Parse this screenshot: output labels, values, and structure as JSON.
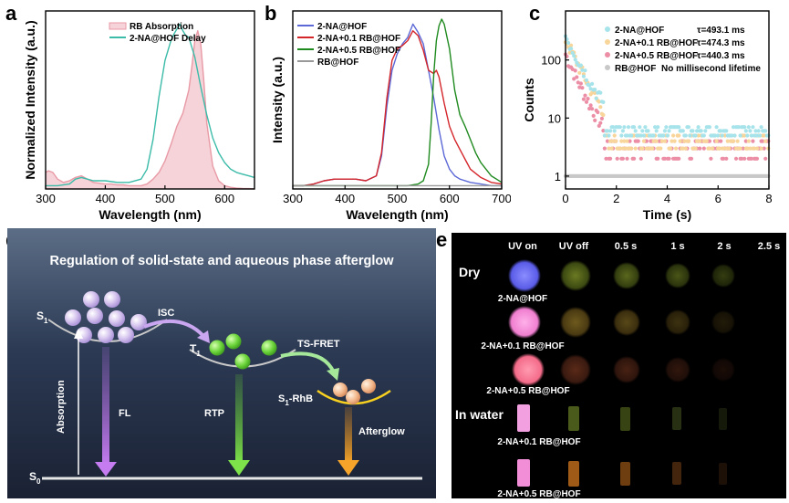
{
  "panel_labels": {
    "a": "a",
    "b": "b",
    "c": "c",
    "d": "d",
    "e": "e"
  },
  "chart_data": [
    {
      "type": "area",
      "panel": "a",
      "xlabel": "Wavelength (nm)",
      "ylabel": "Normalized Intensity (a.u.)",
      "xlim": [
        300,
        650
      ],
      "xticks": [
        300,
        400,
        500,
        600
      ],
      "ylim": [
        0,
        1.08
      ],
      "series": [
        {
          "name": "RB Absorption",
          "color": "#e89aa6",
          "fill": "#f6d3d8",
          "x": [
            300,
            305,
            312,
            320,
            330,
            340,
            350,
            360,
            370,
            380,
            390,
            400,
            410,
            420,
            430,
            440,
            450,
            460,
            470,
            480,
            490,
            500,
            510,
            520,
            530,
            540,
            545,
            550,
            555,
            560,
            565,
            570,
            580,
            590,
            600,
            610,
            620,
            630,
            640,
            650
          ],
          "y": [
            0.1,
            0.11,
            0.1,
            0.06,
            0.04,
            0.05,
            0.07,
            0.08,
            0.06,
            0.04,
            0.035,
            0.03,
            0.03,
            0.025,
            0.025,
            0.02,
            0.02,
            0.02,
            0.03,
            0.06,
            0.1,
            0.17,
            0.27,
            0.38,
            0.46,
            0.6,
            0.74,
            0.9,
            0.96,
            0.88,
            0.66,
            0.4,
            0.14,
            0.05,
            0.02,
            0.01,
            0.005,
            0.003,
            0.002,
            0.0
          ]
        },
        {
          "name": "2-NA@HOF Delay",
          "color": "#3bbba8",
          "x": [
            300,
            320,
            340,
            350,
            360,
            370,
            380,
            390,
            400,
            420,
            440,
            460,
            470,
            480,
            490,
            500,
            510,
            515,
            520,
            525,
            530,
            535,
            540,
            550,
            560,
            570,
            580,
            590,
            600,
            610,
            620,
            630,
            640,
            650
          ],
          "y": [
            0.02,
            0.02,
            0.03,
            0.06,
            0.07,
            0.06,
            0.05,
            0.05,
            0.05,
            0.04,
            0.04,
            0.06,
            0.12,
            0.3,
            0.56,
            0.78,
            0.9,
            0.94,
            0.97,
            1.0,
            0.96,
            0.93,
            0.92,
            0.8,
            0.62,
            0.45,
            0.31,
            0.22,
            0.16,
            0.12,
            0.1,
            0.09,
            0.08,
            0.07
          ]
        }
      ]
    },
    {
      "type": "line",
      "panel": "b",
      "xlabel": "Wavelength (nm)",
      "ylabel": "Intensity (a.u.)",
      "xlim": [
        300,
        700
      ],
      "xticks": [
        300,
        400,
        500,
        600,
        700
      ],
      "ylim": [
        0,
        1.08
      ],
      "series": [
        {
          "name": "2-NA@HOF",
          "color": "#5b68d6",
          "x": [
            300,
            320,
            340,
            360,
            380,
            400,
            420,
            440,
            460,
            470,
            480,
            490,
            500,
            510,
            520,
            530,
            540,
            550,
            560,
            570,
            580,
            590,
            600,
            610,
            620,
            640,
            660,
            680,
            700
          ],
          "y": [
            0.02,
            0.02,
            0.03,
            0.05,
            0.06,
            0.06,
            0.06,
            0.05,
            0.08,
            0.2,
            0.5,
            0.72,
            0.82,
            0.88,
            0.92,
            1.0,
            0.95,
            0.88,
            0.72,
            0.55,
            0.36,
            0.2,
            0.12,
            0.08,
            0.06,
            0.04,
            0.03,
            0.02,
            0.02
          ]
        },
        {
          "name": "2-NA+0.1 RB@HOF",
          "color": "#d4252a",
          "x": [
            300,
            320,
            340,
            360,
            380,
            400,
            420,
            440,
            460,
            470,
            480,
            490,
            500,
            510,
            520,
            530,
            540,
            550,
            560,
            570,
            575,
            580,
            590,
            600,
            610,
            620,
            630,
            640,
            660,
            680,
            700
          ],
          "y": [
            0.02,
            0.02,
            0.03,
            0.05,
            0.06,
            0.06,
            0.06,
            0.05,
            0.08,
            0.22,
            0.55,
            0.78,
            0.85,
            0.87,
            0.9,
            0.96,
            0.93,
            0.84,
            0.72,
            0.7,
            0.72,
            0.68,
            0.52,
            0.38,
            0.3,
            0.24,
            0.18,
            0.12,
            0.07,
            0.04,
            0.03
          ]
        },
        {
          "name": "2-NA+0.5 RB@HOF",
          "color": "#1f8a1f",
          "x": [
            300,
            350,
            400,
            450,
            480,
            500,
            520,
            540,
            550,
            560,
            565,
            570,
            575,
            580,
            585,
            590,
            600,
            610,
            620,
            630,
            640,
            650,
            660,
            670,
            680,
            690,
            700
          ],
          "y": [
            0.02,
            0.02,
            0.02,
            0.02,
            0.02,
            0.02,
            0.02,
            0.03,
            0.05,
            0.15,
            0.4,
            0.7,
            0.9,
            0.99,
            1.03,
            1.0,
            0.85,
            0.6,
            0.45,
            0.38,
            0.3,
            0.22,
            0.16,
            0.12,
            0.08,
            0.06,
            0.04
          ]
        },
        {
          "name": "RB@HOF",
          "color": "#999999",
          "x": [
            300,
            350,
            400,
            450,
            500,
            550,
            600,
            650,
            700
          ],
          "y": [
            0.02,
            0.02,
            0.02,
            0.02,
            0.02,
            0.02,
            0.02,
            0.02,
            0.02
          ]
        }
      ]
    },
    {
      "type": "scatter",
      "panel": "c",
      "xlabel": "Time (s)",
      "ylabel": "Counts",
      "xlim": [
        0,
        8
      ],
      "xticks": [
        0,
        2,
        4,
        6,
        8
      ],
      "yscale": "log",
      "ylim": [
        0.6,
        700
      ],
      "yticks": [
        1,
        10,
        100
      ],
      "series": [
        {
          "name": "2-NA@HOF",
          "annotation": "τ=493.1 ms",
          "color": "#a7e3ea",
          "tau": 0.4931,
          "a": 250,
          "baseline": 6
        },
        {
          "name": "2-NA+0.1 RB@HOF",
          "annotation": "τ=474.3 ms",
          "color": "#f8d59a",
          "tau": 0.4743,
          "a": 220,
          "baseline": 4
        },
        {
          "name": "2-NA+0.5 RB@HOF",
          "annotation": "τ=440.3 ms",
          "color": "#ec8fa6",
          "tau": 0.4403,
          "a": 120,
          "baseline": 3
        },
        {
          "name": "RB@HOF",
          "annotation": "No millisecond lifetime",
          "color": "#c8c8c8",
          "tau": 0,
          "a": 0,
          "baseline": 1
        }
      ]
    }
  ],
  "panel_d": {
    "title": "Regulation of solid-state and aqueous phase afterglow",
    "s1": "S",
    "s1_sub": "1",
    "t1": "T",
    "t1_sub": "1",
    "s0": "S",
    "s0_sub": "0",
    "isc": "ISC",
    "tsfret": "TS-FRET",
    "s1rhb": "S",
    "s1rhb_sub": "1",
    "s1rhb_suffix": "-RhB",
    "absorption": "Absorption",
    "fl": "FL",
    "rtp": "RTP",
    "afterglow": "Afterglow"
  },
  "panel_e": {
    "columns": [
      "UV on",
      "UV off",
      "0.5 s",
      "1 s",
      "2 s",
      "2.5 s"
    ],
    "dry_label": "Dry",
    "water_label": "In water",
    "sample_labels": [
      "2-NA@HOF",
      "2-NA+0.1 RB@HOF",
      "2-NA+0.5 RB@HOF",
      "2-NA+0.1 RB@HOF",
      "2-NA+0.5 RB@HOF"
    ],
    "colors": {
      "blue": "#6a6cf0",
      "pink": "#f07fd0",
      "pink_light": "#f2a0e0",
      "coral": "#f46c8a",
      "green_dark": "#4a5a1a",
      "olive": "#5a4a1a",
      "brown": "#4a2418",
      "orange": "#a05a18"
    }
  }
}
